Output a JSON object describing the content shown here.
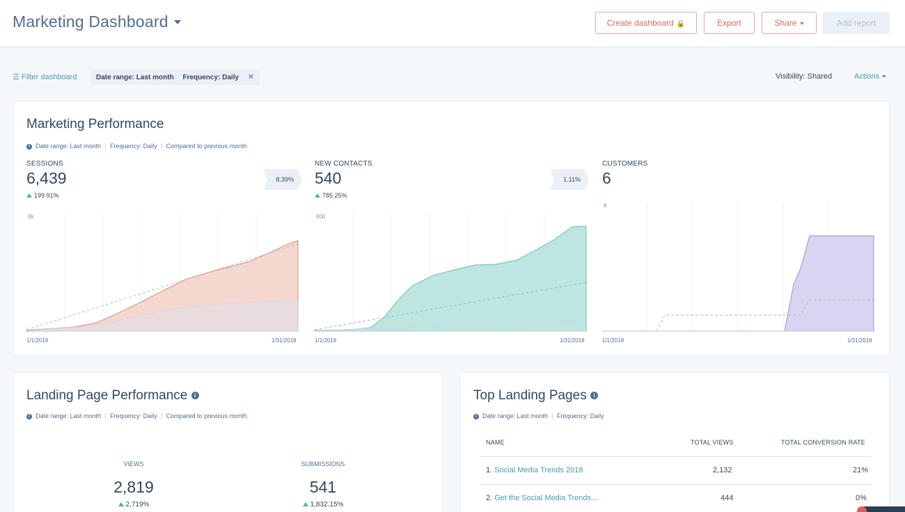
{
  "header": {
    "title": "Marketing Dashboard",
    "buttons": {
      "create": "Create dashboard",
      "export": "Export",
      "share": "Share",
      "add_report": "Add report"
    }
  },
  "filter_bar": {
    "filter_label": "Filter dashboard",
    "chip_date": "Date range: Last month",
    "chip_frequency": "Frequency: Daily",
    "visibility_label": "Visibility:",
    "visibility_value": "Shared",
    "actions_label": "Actions"
  },
  "marketing_performance": {
    "title": "Marketing Performance",
    "meta": [
      "Date range: Last month",
      "Frequency: Daily",
      "Compared to previous month"
    ],
    "metrics": [
      {
        "label": "SESSIONS",
        "value": "6,439",
        "change": "199.91%",
        "conversion": "8.39%",
        "axis_max_label": "8k",
        "date_start": "1/1/2018",
        "date_end": "1/31/2018",
        "color": "#e5a896"
      },
      {
        "label": "NEW CONTACTS",
        "value": "540",
        "change": "785.25%",
        "conversion": "1.11%",
        "axis_max_label": "600",
        "date_start": "1/1/2018",
        "date_end": "1/31/2018",
        "color": "#7fd1c3"
      },
      {
        "label": "CUSTOMERS",
        "value": "6",
        "change": "",
        "conversion": "",
        "axis_max_label": "8",
        "date_start": "1/1/2018",
        "date_end": "1/31/2018",
        "color": "#b8b0dd"
      }
    ]
  },
  "landing_page_performance": {
    "title": "Landing Page Performance",
    "meta": [
      "Date range: Last month",
      "Frequency: Daily",
      "Compared to previous month"
    ],
    "views_label": "VIEWS",
    "views_value": "2,819",
    "views_change": "2,719%",
    "submissions_label": "SUBMISSIONS",
    "submissions_value": "541",
    "submissions_change": "1,832.15%"
  },
  "top_landing_pages": {
    "title": "Top Landing Pages",
    "meta": [
      "Date range: Last month",
      "Frequency: Daily"
    ],
    "columns": [
      "NAME",
      "TOTAL VIEWS",
      "TOTAL CONVERSION RATE"
    ],
    "rows": [
      {
        "index": "1.",
        "name": "Social Media Trends 2018",
        "views": "2,132",
        "rate": "21%"
      },
      {
        "index": "2.",
        "name": "Get the Social Media Trends...",
        "views": "444",
        "rate": "0%"
      }
    ]
  }
}
